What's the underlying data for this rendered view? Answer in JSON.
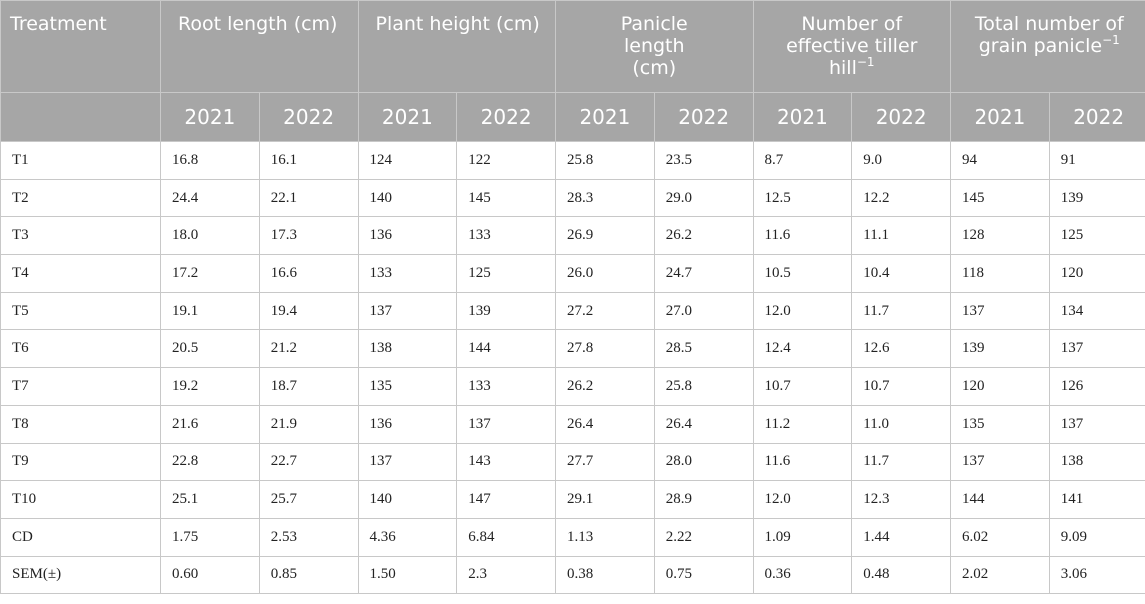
{
  "table": {
    "treatment_header": "Treatment",
    "groups": [
      {
        "label": "Root length (cm)",
        "sup": ""
      },
      {
        "label": "Plant height (cm)",
        "sup": ""
      },
      {
        "label": "Panicle length (cm)",
        "sup": ""
      },
      {
        "label": "Number of effective tiller hill",
        "sup": "−1"
      },
      {
        "label": "Total number of grain panicle",
        "sup": "−1"
      }
    ],
    "years": [
      "2021",
      "2022"
    ],
    "rows": [
      {
        "treatment": "T1",
        "values": [
          "16.8",
          "16.1",
          "124",
          "122",
          "25.8",
          "23.5",
          "8.7",
          "9.0",
          "94",
          "91"
        ]
      },
      {
        "treatment": "T2",
        "values": [
          "24.4",
          "22.1",
          "140",
          "145",
          "28.3",
          "29.0",
          "12.5",
          "12.2",
          "145",
          "139"
        ]
      },
      {
        "treatment": "T3",
        "values": [
          "18.0",
          "17.3",
          "136",
          "133",
          "26.9",
          "26.2",
          "11.6",
          "11.1",
          "128",
          "125"
        ]
      },
      {
        "treatment": "T4",
        "values": [
          "17.2",
          "16.6",
          "133",
          "125",
          "26.0",
          "24.7",
          "10.5",
          "10.4",
          "118",
          "120"
        ]
      },
      {
        "treatment": "T5",
        "values": [
          "19.1",
          "19.4",
          "137",
          "139",
          "27.2",
          "27.0",
          "12.0",
          "11.7",
          "137",
          "134"
        ]
      },
      {
        "treatment": "T6",
        "values": [
          "20.5",
          "21.2",
          "138",
          "144",
          "27.8",
          "28.5",
          "12.4",
          "12.6",
          "139",
          "137"
        ]
      },
      {
        "treatment": "T7",
        "values": [
          "19.2",
          "18.7",
          "135",
          "133",
          "26.2",
          "25.8",
          "10.7",
          "10.7",
          "120",
          "126"
        ]
      },
      {
        "treatment": "T8",
        "values": [
          "21.6",
          "21.9",
          "136",
          "137",
          "26.4",
          "26.4",
          "11.2",
          "11.0",
          "135",
          "137"
        ]
      },
      {
        "treatment": "T9",
        "values": [
          "22.8",
          "22.7",
          "137",
          "143",
          "27.7",
          "28.0",
          "11.6",
          "11.7",
          "137",
          "138"
        ]
      },
      {
        "treatment": "T10",
        "values": [
          "25.1",
          "25.7",
          "140",
          "147",
          "29.1",
          "28.9",
          "12.0",
          "12.3",
          "144",
          "141"
        ]
      },
      {
        "treatment": "CD",
        "values": [
          "1.75",
          "2.53",
          "4.36",
          "6.84",
          "1.13",
          "2.22",
          "1.09",
          "1.44",
          "6.02",
          "9.09"
        ]
      },
      {
        "treatment": "SEM(±)",
        "values": [
          "0.60",
          "0.85",
          "1.50",
          "2.3",
          "0.38",
          "0.75",
          "0.36",
          "0.48",
          "2.02",
          "3.06"
        ]
      }
    ]
  }
}
